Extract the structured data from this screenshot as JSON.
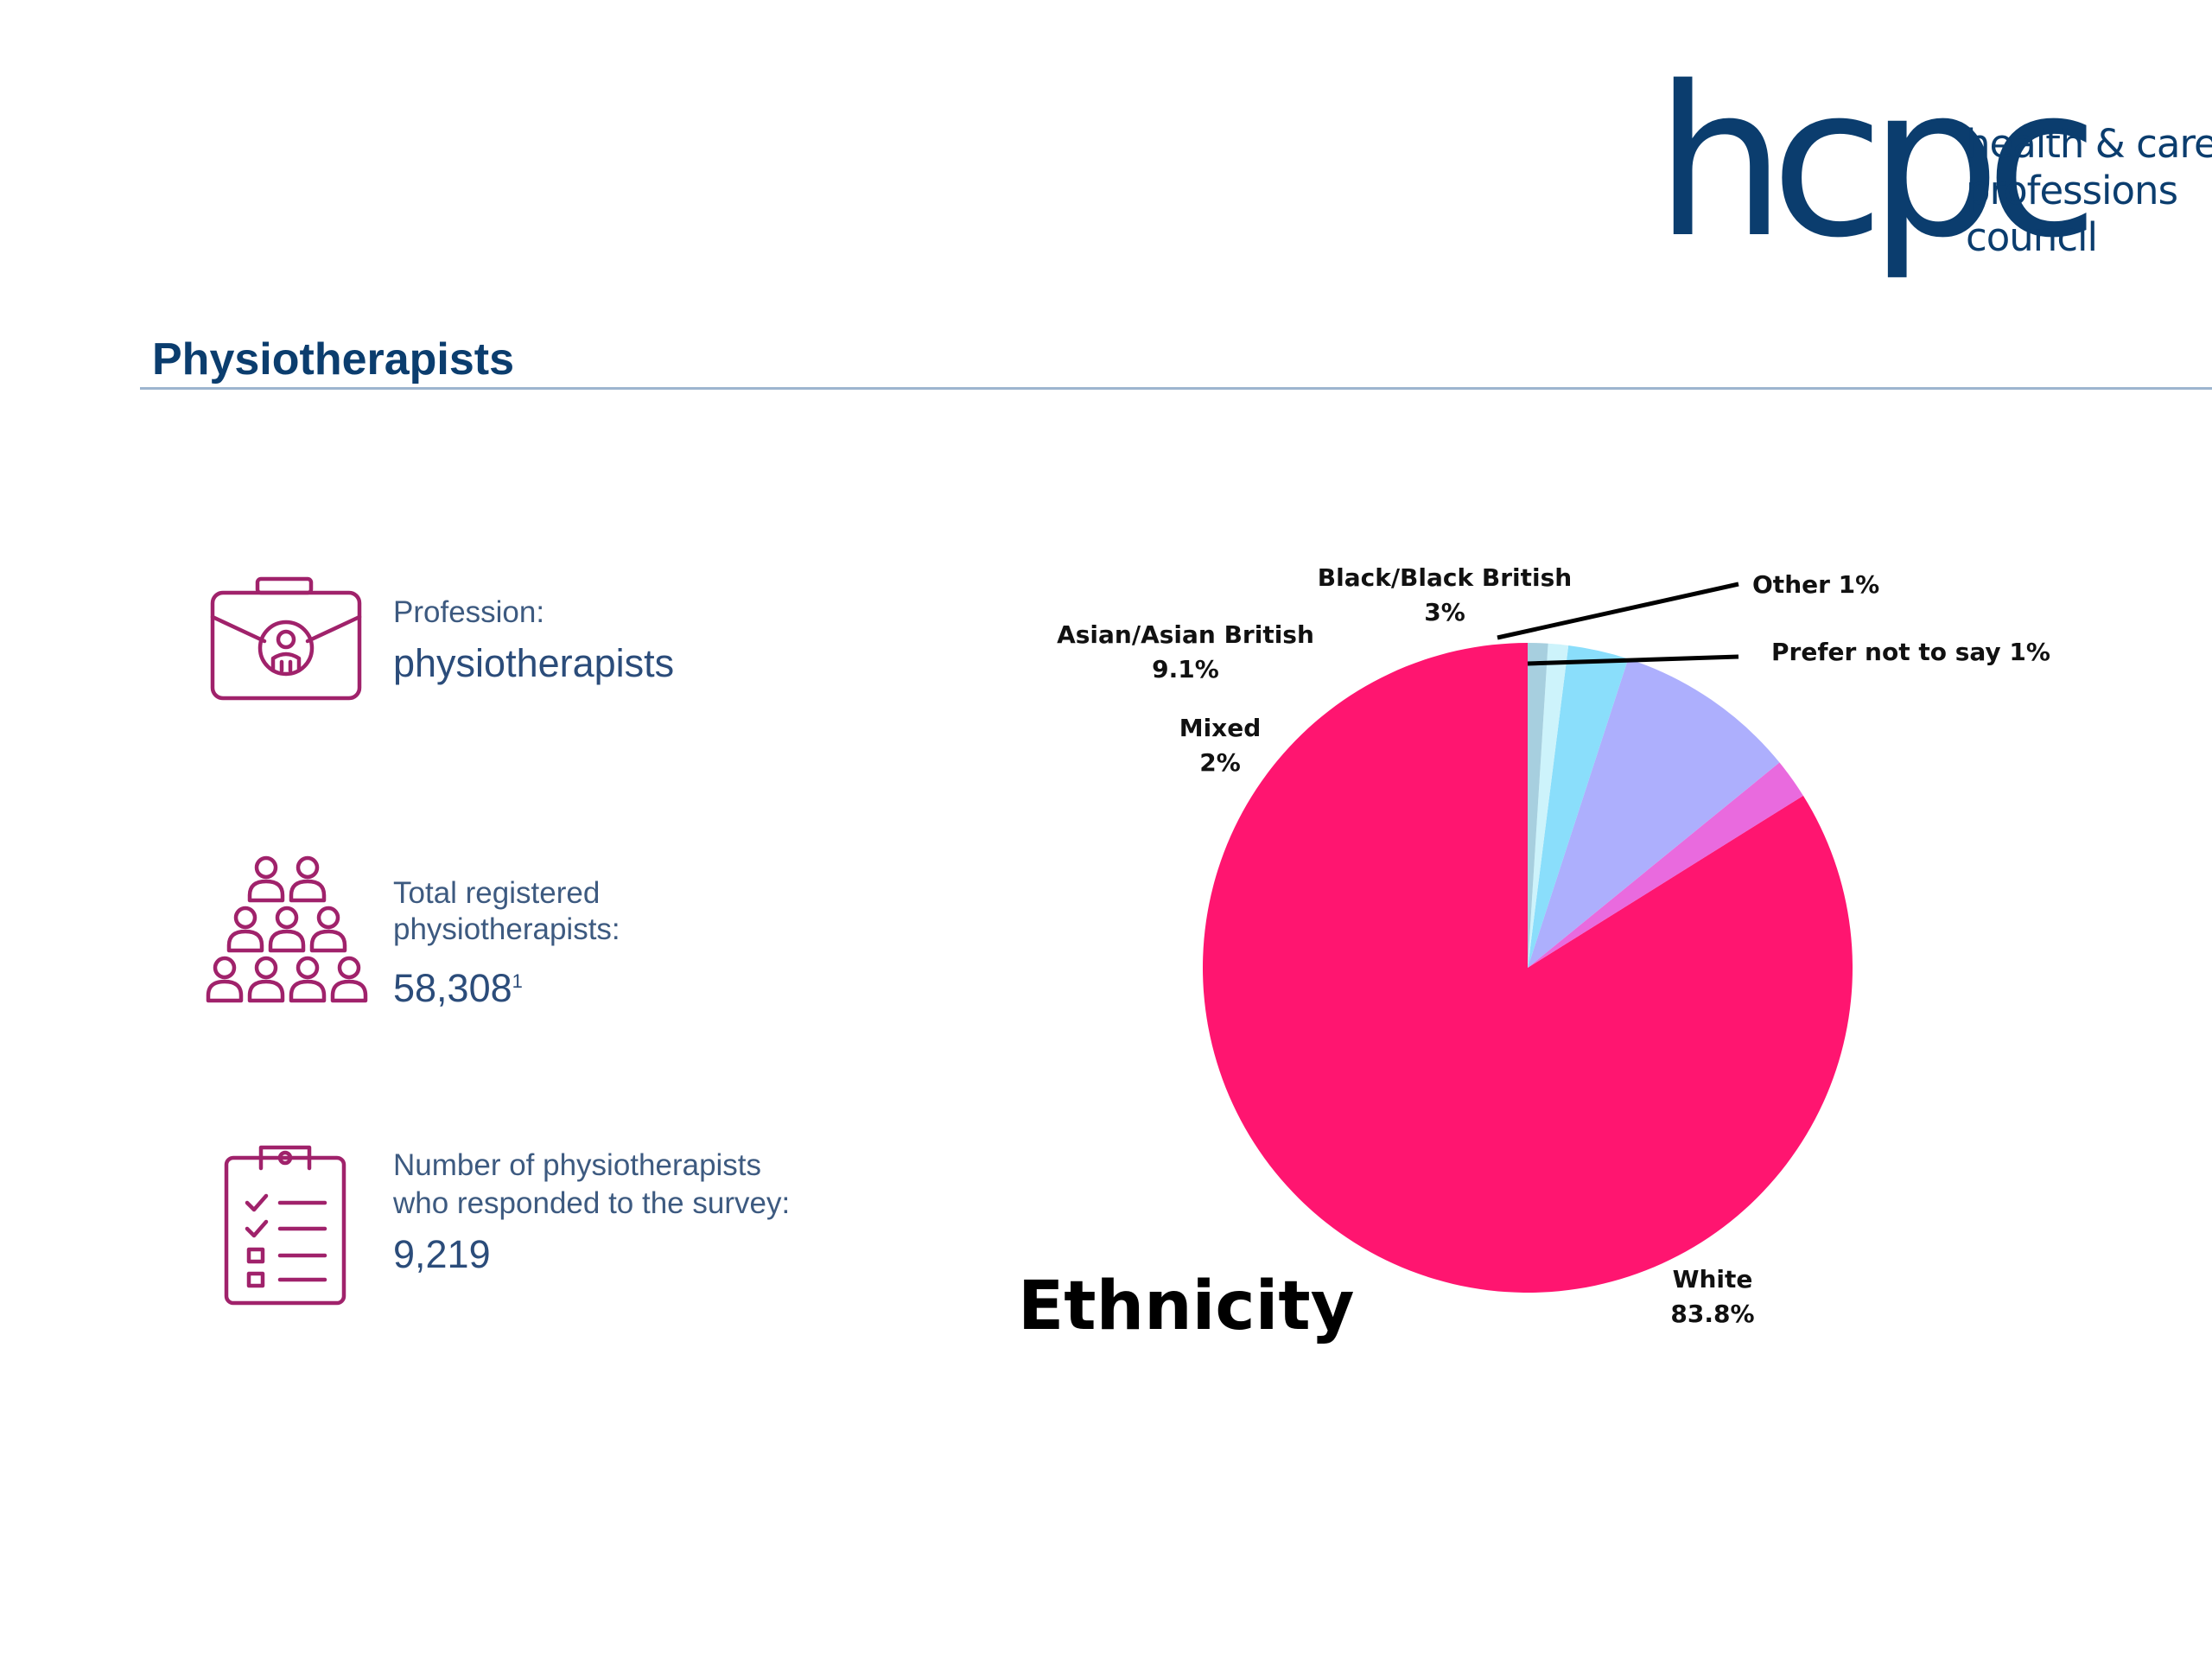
{
  "logo": {
    "mark": "hcpc",
    "line1": "health & care",
    "line2": "professions",
    "line3": "council",
    "color": "#0b3d6e"
  },
  "header": {
    "title": "Physiotherapists"
  },
  "stats": {
    "profession": {
      "label": "Profession:",
      "value": "physiotherapists",
      "icon": "briefcase-icon"
    },
    "registered": {
      "label_line1": "Total registered",
      "label_line2": "physiotherapists:",
      "value": "58,308",
      "footnote": "1",
      "icon": "people-group-icon"
    },
    "responded": {
      "label_line1": "Number of physiotherapists",
      "label_line2": "who responded to the survey:",
      "value": "9,219",
      "icon": "clipboard-checklist-icon"
    }
  },
  "colors": {
    "accent": "#a0226b",
    "title_blue": "#0b3d6e"
  },
  "chart_data": {
    "type": "pie",
    "title": "Ethnicity",
    "slices": [
      {
        "name": "White",
        "value": 83.8,
        "label": "83.8%",
        "color": "#ff1570"
      },
      {
        "name": "Mixed",
        "value": 2,
        "label": "2%",
        "color": "#e96ade"
      },
      {
        "name": "Asian/Asian British",
        "value": 9.1,
        "label": "9.1%",
        "color": "#adaffd"
      },
      {
        "name": "Black/Black British",
        "value": 3,
        "label": "3%",
        "color": "#8adefb"
      },
      {
        "name": "Other",
        "value": 1,
        "label": "1%",
        "color": "#cdf3fb"
      },
      {
        "name": "Prefer not to say",
        "value": 1,
        "label": "1%",
        "color": "#a7cfdf"
      }
    ],
    "start": "12 o'clock",
    "direction": "counter-clockwise"
  }
}
